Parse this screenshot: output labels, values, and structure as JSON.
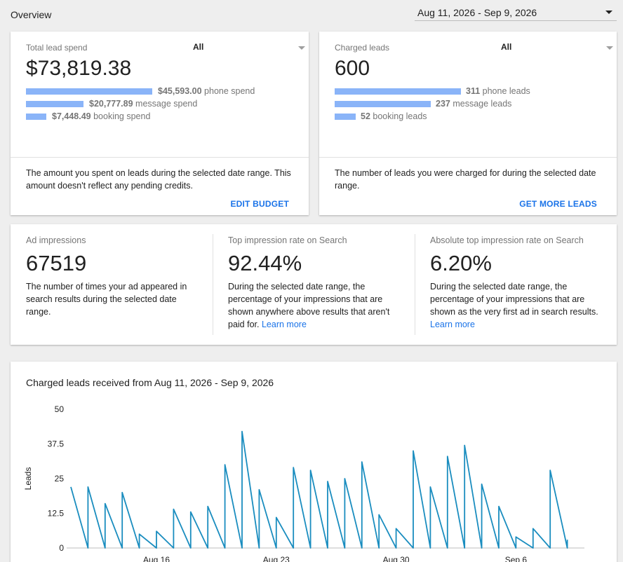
{
  "overview_title": "Overview",
  "date_range": "Aug 11, 2026 - Sep 9, 2026",
  "spend_card": {
    "label": "Total lead spend",
    "filter": "All",
    "total": "$73,819.38",
    "rows": [
      {
        "amount": "$45,593.00",
        "text": "phone spend",
        "fraction": 0.617
      },
      {
        "amount": "$20,777.89",
        "text": "message spend",
        "fraction": 0.281
      },
      {
        "amount": "$7,448.49",
        "text": "booking spend",
        "fraction": 0.101
      }
    ],
    "description": "The amount you spent on leads during the selected date range. This amount doesn't reflect any pending credits.",
    "action": "EDIT BUDGET"
  },
  "leads_card": {
    "label": "Charged leads",
    "filter": "All",
    "total": "600",
    "rows": [
      {
        "amount": "311",
        "text": "phone leads",
        "fraction": 0.518
      },
      {
        "amount": "237",
        "text": "message leads",
        "fraction": 0.395
      },
      {
        "amount": "52",
        "text": "booking leads",
        "fraction": 0.087
      }
    ],
    "description": "The number of leads you were charged for during the selected date range.",
    "action": "GET MORE LEADS"
  },
  "impressions_card": {
    "metrics": [
      {
        "label": "Ad impressions",
        "value": "67519",
        "desc": "The number of times your ad appeared in search results during the selected date range.",
        "link": ""
      },
      {
        "label": "Top impression rate on Search",
        "value": "92.44%",
        "desc": "During the selected date range, the percentage of your impressions that are shown anywhere above results that aren't paid for.",
        "link": "Learn more"
      },
      {
        "label": "Absolute top impression rate on Search",
        "value": "6.20%",
        "desc": "During the selected date range, the percentage of your impressions that are shown as the very first ad in search results.",
        "link": "Learn more"
      }
    ]
  },
  "chart_card": {
    "title": "Charged leads received from Aug 11, 2026 - Sep 9, 2026"
  },
  "chart_data": {
    "type": "line",
    "title": "Charged leads received from Aug 11, 2026 - Sep 9, 2026",
    "ylabel": "Leads",
    "xlabel": "",
    "ylim": [
      0,
      50
    ],
    "yticks": [
      0,
      12.5,
      25,
      37.5,
      50
    ],
    "ytick_labels": [
      "0",
      "12.5",
      "25",
      "37.5",
      "50"
    ],
    "xtick_labels": [
      "Aug 16",
      "Aug 23",
      "Aug 30",
      "Sep 6"
    ],
    "xtick_dates": [
      "2026-08-16",
      "2026-08-23",
      "2026-08-30",
      "2026-09-06"
    ],
    "color": "#1a8dbf",
    "series": [
      {
        "points": [
          [
            "2026-08-11",
            22
          ],
          [
            "2026-08-12",
            0
          ],
          [
            "2026-08-12",
            22
          ],
          [
            "2026-08-13",
            0
          ],
          [
            "2026-08-13",
            16
          ],
          [
            "2026-08-14",
            0
          ],
          [
            "2026-08-14",
            20
          ],
          [
            "2026-08-15",
            0
          ],
          [
            "2026-08-15",
            5
          ],
          [
            "2026-08-16",
            0
          ],
          [
            "2026-08-16",
            6
          ],
          [
            "2026-08-17",
            0
          ],
          [
            "2026-08-17",
            14
          ],
          [
            "2026-08-18",
            0
          ],
          [
            "2026-08-18",
            13
          ],
          [
            "2026-08-19",
            0
          ],
          [
            "2026-08-19",
            15
          ],
          [
            "2026-08-20",
            0
          ],
          [
            "2026-08-20",
            30
          ],
          [
            "2026-08-21",
            0
          ],
          [
            "2026-08-21",
            42
          ],
          [
            "2026-08-22",
            0
          ],
          [
            "2026-08-22",
            21
          ],
          [
            "2026-08-23",
            0
          ],
          [
            "2026-08-23",
            11
          ],
          [
            "2026-08-24",
            0
          ],
          [
            "2026-08-24",
            29
          ],
          [
            "2026-08-25",
            0
          ],
          [
            "2026-08-25",
            28
          ],
          [
            "2026-08-26",
            0
          ],
          [
            "2026-08-26",
            24
          ],
          [
            "2026-08-27",
            0
          ],
          [
            "2026-08-27",
            25
          ],
          [
            "2026-08-28",
            0
          ],
          [
            "2026-08-28",
            31
          ],
          [
            "2026-08-29",
            0
          ],
          [
            "2026-08-29",
            12
          ],
          [
            "2026-08-30",
            0
          ],
          [
            "2026-08-30",
            7
          ],
          [
            "2026-08-31",
            0
          ],
          [
            "2026-08-31",
            35
          ],
          [
            "2026-09-01",
            0
          ],
          [
            "2026-09-01",
            22
          ],
          [
            "2026-09-02",
            0
          ],
          [
            "2026-09-02",
            33
          ],
          [
            "2026-09-03",
            0
          ],
          [
            "2026-09-03",
            37
          ],
          [
            "2026-09-04",
            0
          ],
          [
            "2026-09-04",
            23
          ],
          [
            "2026-09-05",
            0
          ],
          [
            "2026-09-05",
            15
          ],
          [
            "2026-09-06",
            0
          ],
          [
            "2026-09-06",
            4
          ],
          [
            "2026-09-07",
            0
          ],
          [
            "2026-09-07",
            7
          ],
          [
            "2026-09-08",
            0
          ],
          [
            "2026-09-08",
            28
          ],
          [
            "2026-09-09",
            0
          ],
          [
            "2026-09-09",
            3
          ]
        ]
      }
    ]
  }
}
